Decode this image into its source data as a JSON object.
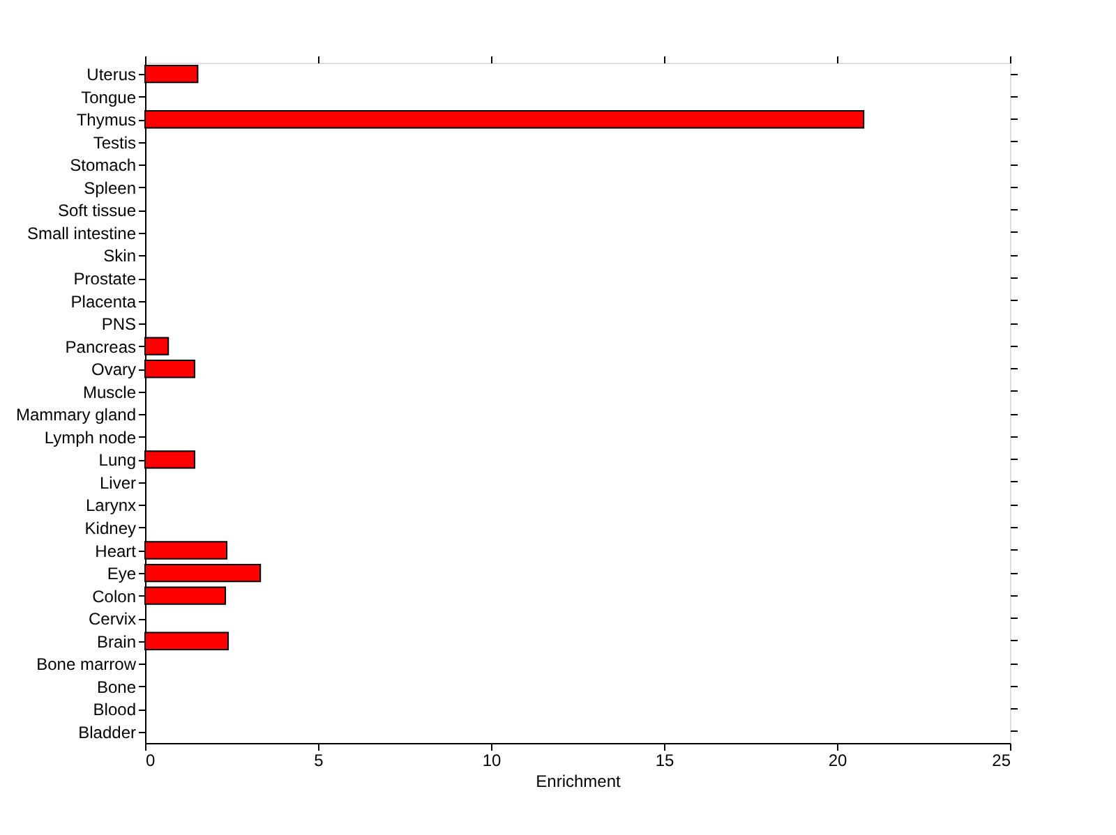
{
  "chart_data": {
    "type": "bar",
    "orientation": "horizontal",
    "xlabel": "Enrichment",
    "categories": [
      "Uterus",
      "Tongue",
      "Thymus",
      "Testis",
      "Stomach",
      "Spleen",
      "Soft tissue",
      "Small intestine",
      "Skin",
      "Prostate",
      "Placenta",
      "PNS",
      "Pancreas",
      "Ovary",
      "Muscle",
      "Mammary gland",
      "Lymph node",
      "Lung",
      "Liver",
      "Larynx",
      "Kidney",
      "Heart",
      "Eye",
      "Colon",
      "Cervix",
      "Brain",
      "Bone marrow",
      "Bone",
      "Blood",
      "Bladder"
    ],
    "values": [
      1.52,
      0,
      20.77,
      0,
      0,
      0,
      0,
      0,
      0,
      0,
      0,
      0,
      0.67,
      1.43,
      0,
      0,
      0,
      1.43,
      0,
      0,
      0,
      2.36,
      3.33,
      2.32,
      0,
      2.4,
      0,
      0,
      0,
      0
    ],
    "color": "#ff0000",
    "xlim": [
      0,
      25
    ],
    "xticks": [
      0,
      5,
      10,
      15,
      20,
      25
    ],
    "grid": false
  }
}
